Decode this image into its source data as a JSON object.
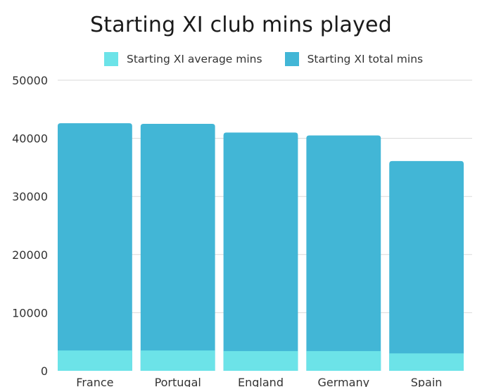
{
  "chart_data": {
    "type": "bar",
    "title": "Starting XI club mins played",
    "categories": [
      "France",
      "Portugal",
      "England",
      "Germany",
      "Spain"
    ],
    "series": [
      {
        "name": "Starting XI average mins",
        "color": "#6CE3E8",
        "values": [
          3500,
          3500,
          3400,
          3400,
          3000
        ]
      },
      {
        "name": "Starting XI total mins",
        "color": "#42B6D6",
        "values": [
          42600,
          42500,
          41000,
          40500,
          36100
        ]
      }
    ],
    "y_ticks": [
      "0",
      "10000",
      "20000",
      "30000",
      "40000",
      "50000"
    ],
    "ylim": [
      0,
      50000
    ],
    "xlabel": "",
    "ylabel": "",
    "grid": true,
    "legend_position": "top"
  }
}
